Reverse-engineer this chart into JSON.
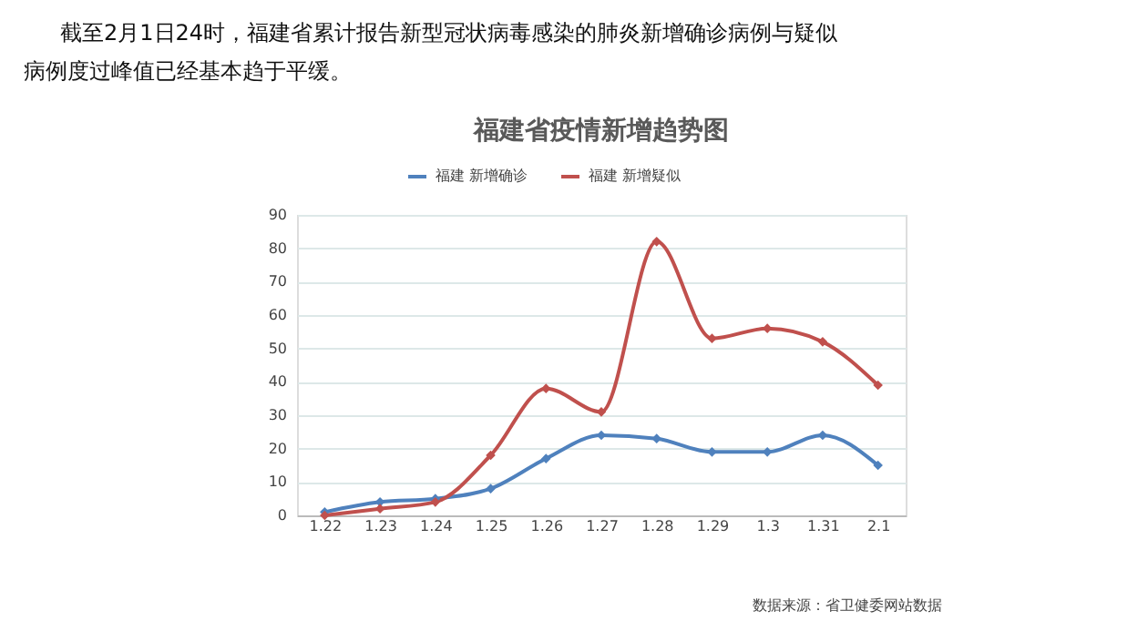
{
  "chart_data": {
    "type": "line",
    "title": "福建省疫情新增趋势图",
    "annotations": [
      "截至2月1日24时，福建省累计报告新型冠状病毒感染的肺炎新增确诊病例与疑似病例度过峰值已经基本趋于平缓。",
      "数据来源：省卫健委网站数据"
    ],
    "categories": [
      "1.22",
      "1.23",
      "1.24",
      "1.25",
      "1.26",
      "1.27",
      "1.28",
      "1.29",
      "1.3",
      "1.31",
      "2.1"
    ],
    "series": [
      {
        "name": "福建 新增确诊",
        "color": "#4f81bd",
        "values": [
          1,
          4,
          5,
          8,
          17,
          24,
          23,
          19,
          19,
          24,
          15
        ]
      },
      {
        "name": "福建 新增疑似",
        "color": "#c0504d",
        "values": [
          0,
          2,
          4,
          18,
          38,
          31,
          82,
          53,
          56,
          52,
          39
        ]
      }
    ],
    "ylim": [
      0,
      90
    ],
    "yticks": [
      0,
      10,
      20,
      30,
      40,
      50,
      60,
      70,
      80,
      90
    ],
    "grid": "y",
    "legend": "top",
    "marker": "diamond",
    "line_style": "solid"
  }
}
